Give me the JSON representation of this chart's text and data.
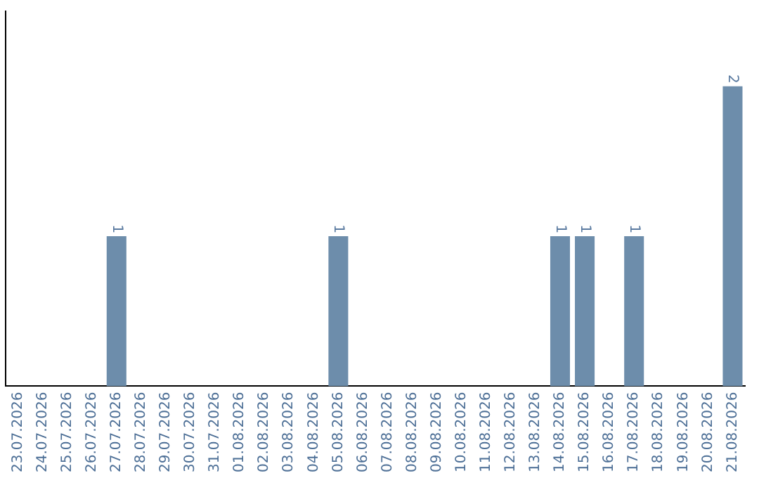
{
  "chart_data": {
    "type": "bar",
    "categories": [
      "23.07.2026",
      "24.07.2026",
      "25.07.2026",
      "26.07.2026",
      "27.07.2026",
      "28.07.2026",
      "29.07.2026",
      "30.07.2026",
      "31.07.2026",
      "01.08.2026",
      "02.08.2026",
      "03.08.2026",
      "04.08.2026",
      "05.08.2026",
      "06.08.2026",
      "07.08.2026",
      "08.08.2026",
      "09.08.2026",
      "10.08.2026",
      "11.08.2026",
      "12.08.2026",
      "13.08.2026",
      "14.08.2026",
      "15.08.2026",
      "16.08.2026",
      "17.08.2026",
      "18.08.2026",
      "19.08.2026",
      "20.08.2026",
      "21.08.2026"
    ],
    "values": [
      0,
      0,
      0,
      0,
      1,
      0,
      0,
      0,
      0,
      0,
      0,
      0,
      0,
      1,
      0,
      0,
      0,
      0,
      0,
      0,
      0,
      0,
      1,
      1,
      0,
      1,
      0,
      0,
      0,
      2
    ],
    "value_labels": [
      null,
      null,
      null,
      null,
      "1",
      null,
      null,
      null,
      null,
      null,
      null,
      null,
      null,
      "1",
      null,
      null,
      null,
      null,
      null,
      null,
      null,
      null,
      "1",
      "1",
      null,
      "1",
      null,
      null,
      null,
      "2"
    ],
    "color": "#6d8dab",
    "tick_labels": "x",
    "grid": false,
    "legend": false
  }
}
